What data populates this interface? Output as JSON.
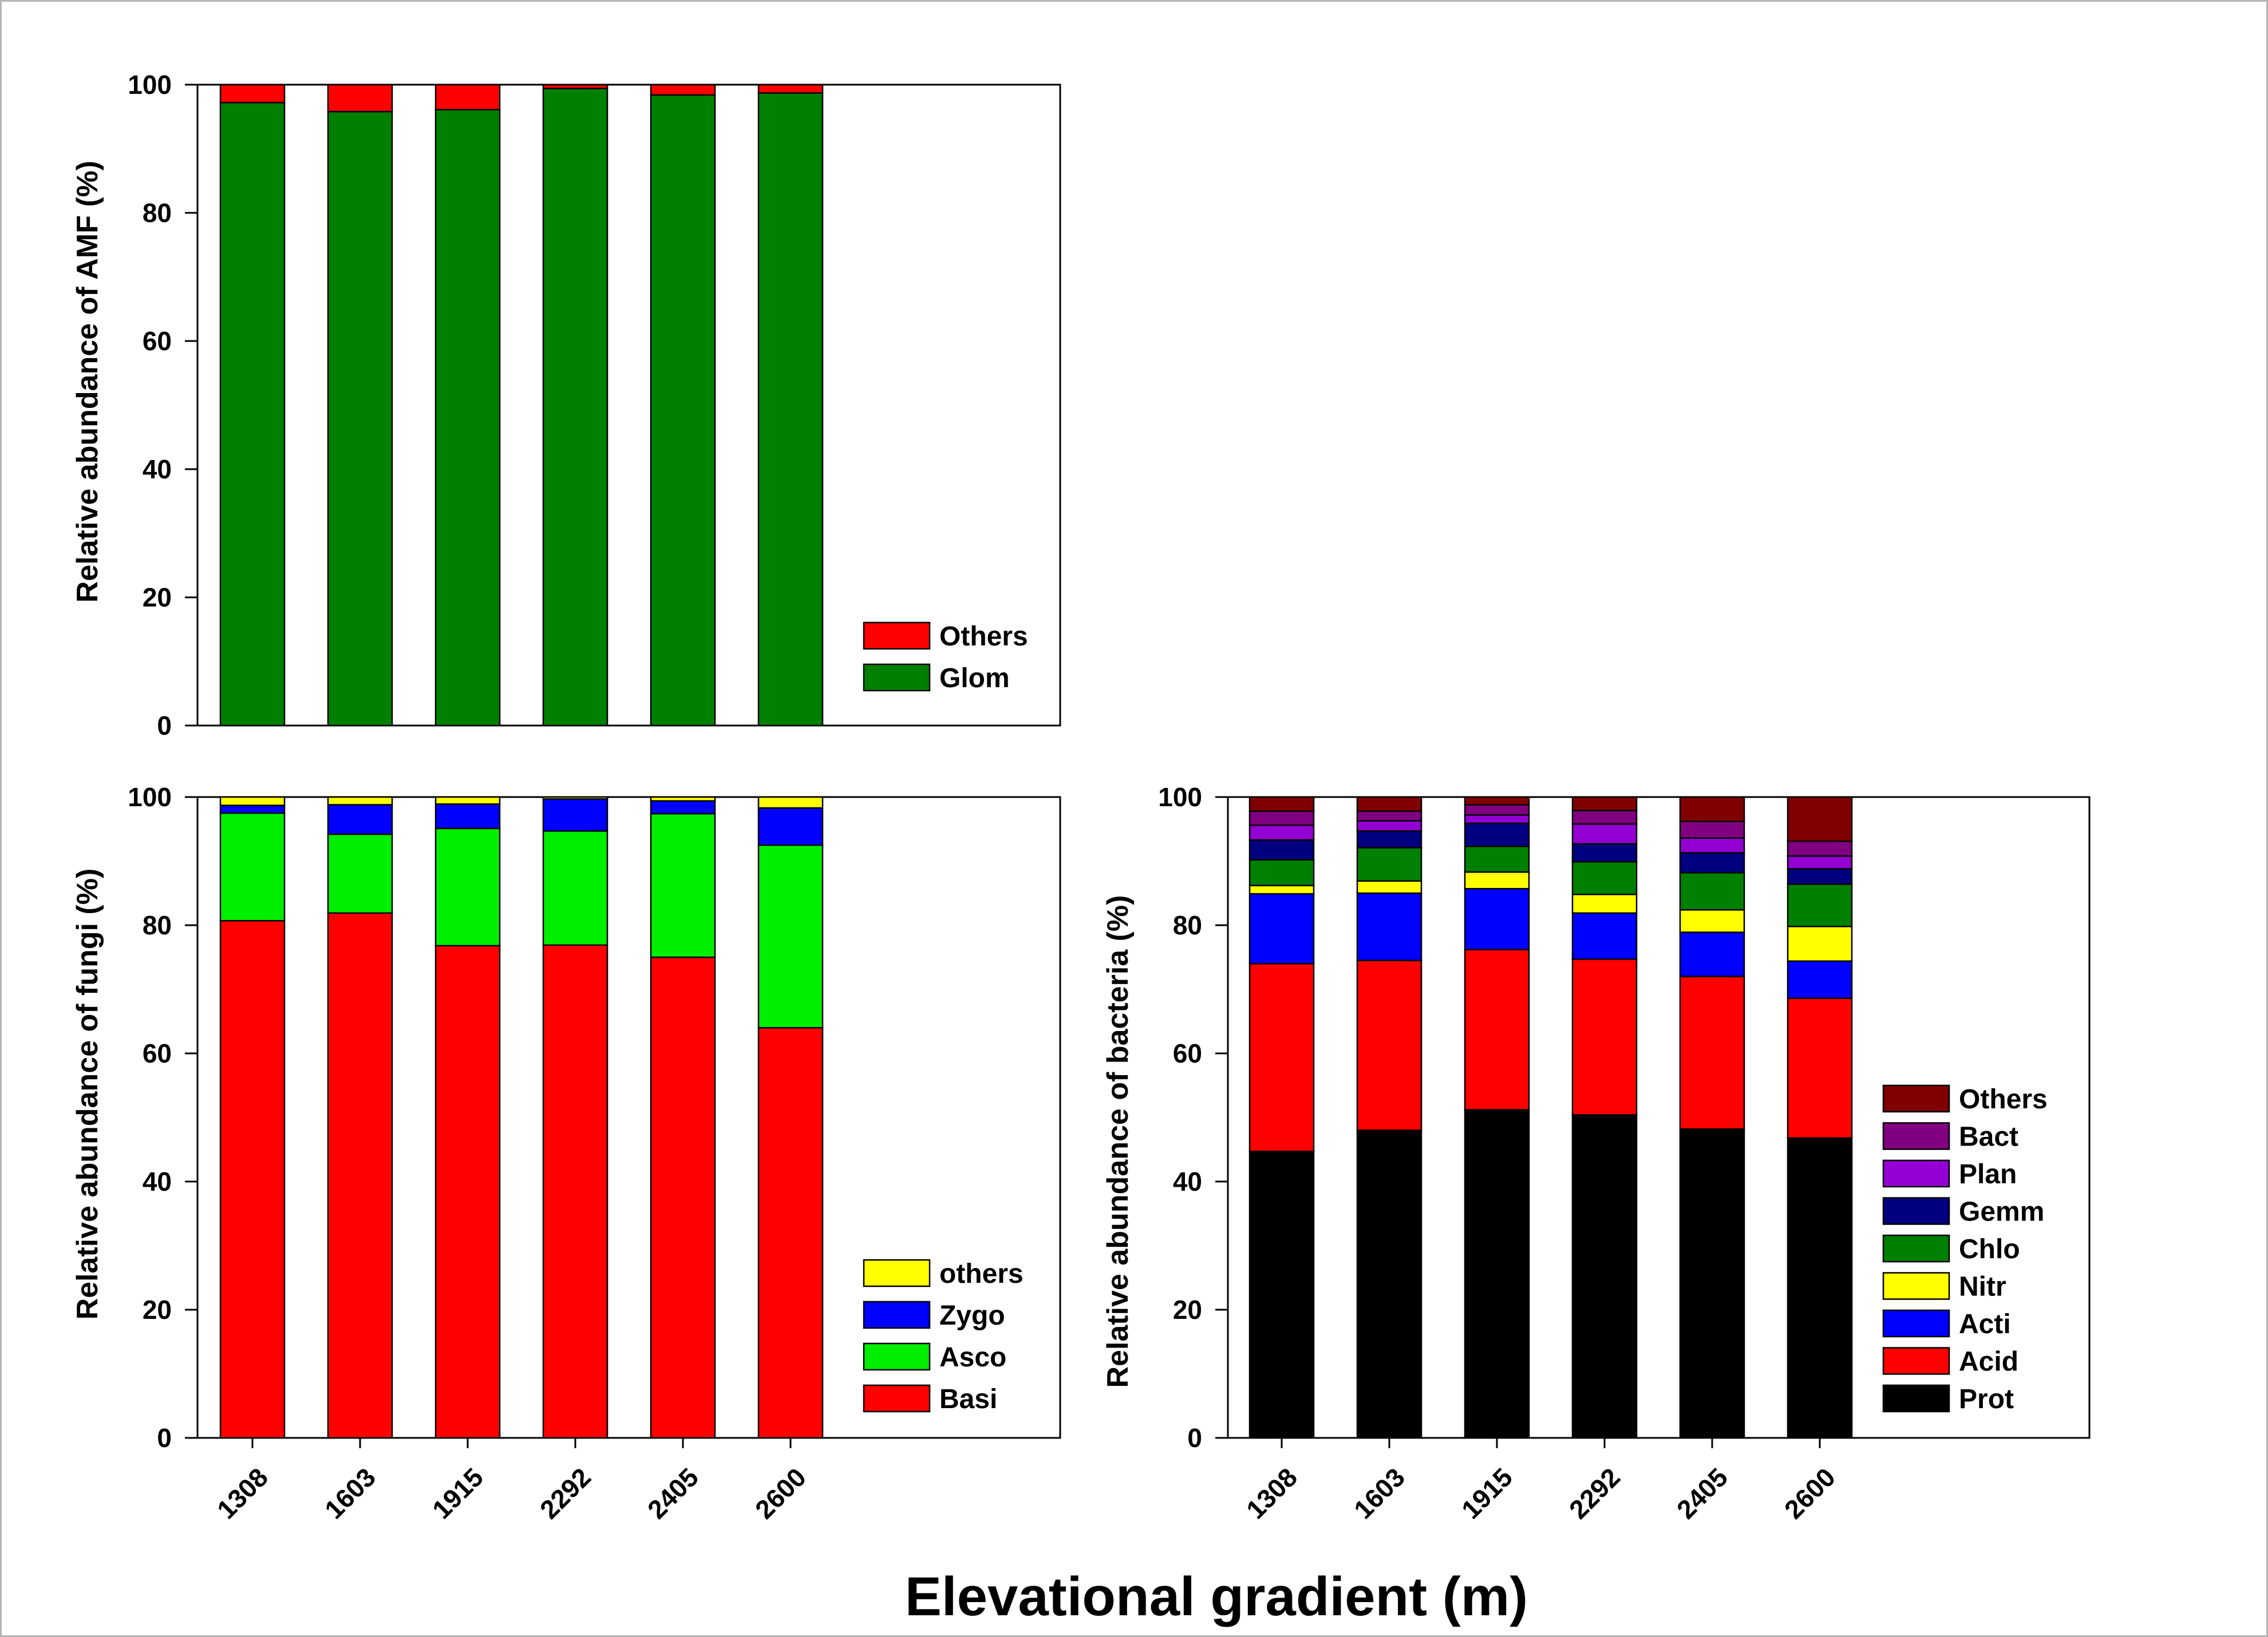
{
  "figure": {
    "xlabel": "Elevational gradient (m)"
  },
  "chart_data": [
    {
      "id": "amf",
      "type": "bar",
      "stacked": true,
      "ylabel": "Relative abundance of AMF (%)",
      "ylim": [
        0,
        100
      ],
      "yticks": [
        0,
        20,
        40,
        60,
        80,
        100
      ],
      "categories": [
        "1308",
        "1603",
        "1915",
        "2292",
        "2405",
        "2600"
      ],
      "show_xticks": false,
      "legend_position": "bottom-right",
      "series": [
        {
          "name": "Glom",
          "color": "#008000",
          "values": [
            97.2,
            95.8,
            96.1,
            99.4,
            98.4,
            98.7
          ]
        },
        {
          "name": "Others",
          "color": "#ff0000",
          "values": [
            2.8,
            4.2,
            3.9,
            0.6,
            1.6,
            1.3
          ]
        }
      ]
    },
    {
      "id": "fungi",
      "type": "bar",
      "stacked": true,
      "ylabel": "Relative abundance of fungi (%)",
      "ylim": [
        0,
        100
      ],
      "yticks": [
        0,
        20,
        40,
        60,
        80,
        100
      ],
      "categories": [
        "1308",
        "1603",
        "1915",
        "2292",
        "2405",
        "2600"
      ],
      "show_xticks": true,
      "legend_position": "bottom-right",
      "series": [
        {
          "name": "Basi",
          "color": "#ff0000",
          "values": [
            80.7,
            81.9,
            76.8,
            76.9,
            75.0,
            64.0
          ]
        },
        {
          "name": "Asco",
          "color": "#00ee00",
          "values": [
            16.8,
            12.3,
            18.3,
            17.8,
            22.4,
            28.5
          ]
        },
        {
          "name": "Zygo",
          "color": "#0000ff",
          "values": [
            1.2,
            4.6,
            3.8,
            5.0,
            2.0,
            5.8
          ]
        },
        {
          "name": "others",
          "color": "#ffff00",
          "values": [
            1.3,
            1.2,
            1.1,
            0.3,
            0.6,
            1.7
          ]
        }
      ]
    },
    {
      "id": "bacteria",
      "type": "bar",
      "stacked": true,
      "ylabel": "Relative abundance of bacteria (%)",
      "ylim": [
        0,
        100
      ],
      "yticks": [
        0,
        20,
        40,
        60,
        80,
        100
      ],
      "categories": [
        "1308",
        "1603",
        "1915",
        "2292",
        "2405",
        "2600"
      ],
      "show_xticks": true,
      "legend_position": "right",
      "series": [
        {
          "name": "Prot",
          "color": "#000000",
          "values": [
            44.7,
            48.0,
            51.2,
            50.4,
            48.2,
            46.8
          ]
        },
        {
          "name": "Acid",
          "color": "#ff0000",
          "values": [
            29.3,
            26.5,
            25.0,
            24.3,
            23.8,
            21.8
          ]
        },
        {
          "name": "Acti",
          "color": "#0000ff",
          "values": [
            10.9,
            10.5,
            9.5,
            7.2,
            6.9,
            5.8
          ]
        },
        {
          "name": "Nitr",
          "color": "#ffff00",
          "values": [
            1.3,
            1.9,
            2.6,
            2.9,
            3.5,
            5.4
          ]
        },
        {
          "name": "Chlo",
          "color": "#008000",
          "values": [
            4.0,
            5.2,
            4.0,
            5.1,
            5.8,
            6.6
          ]
        },
        {
          "name": "Gemm",
          "color": "#000080",
          "values": [
            3.1,
            2.6,
            3.6,
            2.8,
            3.1,
            2.4
          ]
        },
        {
          "name": "Plan",
          "color": "#9400d3",
          "values": [
            2.3,
            1.6,
            1.3,
            3.1,
            2.3,
            2.0
          ]
        },
        {
          "name": "Bact",
          "color": "#800080",
          "values": [
            2.2,
            1.5,
            1.6,
            2.1,
            2.6,
            2.3
          ]
        },
        {
          "name": "Others",
          "color": "#800000",
          "values": [
            2.2,
            2.2,
            1.2,
            2.1,
            3.8,
            6.9
          ]
        }
      ]
    }
  ]
}
